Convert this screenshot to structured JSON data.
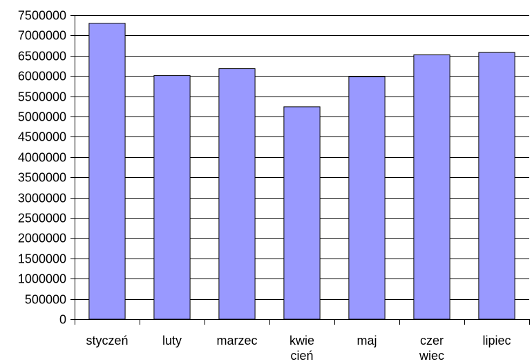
{
  "chart_data": {
    "type": "bar",
    "categories": [
      [
        "styczeń"
      ],
      [
        "luty"
      ],
      [
        "marzec"
      ],
      [
        "kwie",
        "cień"
      ],
      [
        "maj"
      ],
      [
        "czer",
        "wiec"
      ],
      [
        "lipiec"
      ]
    ],
    "values": [
      7300000,
      6010000,
      6180000,
      5240000,
      5980000,
      6520000,
      6580000
    ],
    "yticks": [
      "0",
      "500000",
      "1000000",
      "1500000",
      "2000000",
      "2500000",
      "3000000",
      "3500000",
      "4000000",
      "4500000",
      "5000000",
      "5500000",
      "6000000",
      "6500000",
      "7000000",
      "7500000"
    ],
    "ylim": [
      0,
      7500000
    ],
    "grid": true,
    "title": "",
    "xlabel": "",
    "ylabel": "",
    "colors": {
      "bar": "#9999ff",
      "bar_stroke": "#000000",
      "grid": "#000000",
      "axis": "#000000"
    }
  }
}
